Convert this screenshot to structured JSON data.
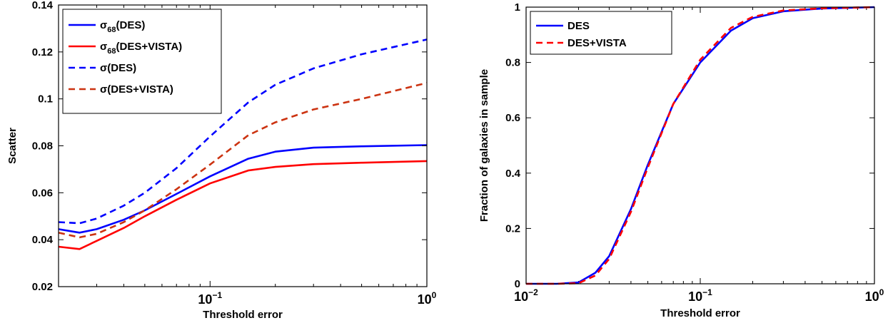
{
  "chart_data": [
    {
      "type": "line",
      "xscale": "log",
      "xlim": [
        0.02,
        1
      ],
      "ylim": [
        0.02,
        0.14
      ],
      "xlabel": "Threshold error",
      "ylabel": "Scatter",
      "xticks": [
        {
          "value": 0.1,
          "base": "10",
          "exp": "−1"
        },
        {
          "value": 1,
          "base": "10",
          "exp": "0"
        }
      ],
      "yticks": [
        {
          "value": 0.02,
          "label": "0.02"
        },
        {
          "value": 0.04,
          "label": "0.04"
        },
        {
          "value": 0.06,
          "label": "0.06"
        },
        {
          "value": 0.08,
          "label": "0.08"
        },
        {
          "value": 0.1,
          "label": "0.1"
        },
        {
          "value": 0.12,
          "label": "0.12"
        },
        {
          "value": 0.14,
          "label": "0.14"
        }
      ],
      "legend_position": "top-left",
      "series": [
        {
          "legend_main": "σ",
          "legend_sub": "68",
          "legend_rest": "(DES)",
          "color": "#0000ff",
          "dash": "solid",
          "x": [
            0.02,
            0.025,
            0.03,
            0.04,
            0.05,
            0.07,
            0.1,
            0.15,
            0.2,
            0.3,
            0.5,
            1.0
          ],
          "y": [
            0.0445,
            0.043,
            0.0445,
            0.0485,
            0.0525,
            0.0595,
            0.067,
            0.0745,
            0.0775,
            0.0792,
            0.0798,
            0.0803
          ]
        },
        {
          "legend_main": "σ",
          "legend_sub": "68",
          "legend_rest": "(DES+VISTA)",
          "color": "#ff0000",
          "dash": "solid",
          "x": [
            0.02,
            0.025,
            0.03,
            0.04,
            0.05,
            0.07,
            0.1,
            0.15,
            0.2,
            0.3,
            0.5,
            1.0
          ],
          "y": [
            0.037,
            0.036,
            0.0395,
            0.045,
            0.05,
            0.057,
            0.064,
            0.0695,
            0.071,
            0.0722,
            0.0728,
            0.0735
          ]
        },
        {
          "legend_main": "σ",
          "legend_sub": "",
          "legend_rest": "(DES)",
          "color": "#0000ff",
          "dash": "dashed",
          "x": [
            0.02,
            0.025,
            0.03,
            0.04,
            0.05,
            0.07,
            0.1,
            0.15,
            0.2,
            0.3,
            0.5,
            1.0
          ],
          "y": [
            0.0475,
            0.047,
            0.049,
            0.0545,
            0.06,
            0.0705,
            0.084,
            0.0985,
            0.106,
            0.113,
            0.119,
            0.1253
          ]
        },
        {
          "legend_main": "σ",
          "legend_sub": "",
          "legend_rest": "(DES+VISTA)",
          "color": "#cc3311",
          "dash": "dashed",
          "x": [
            0.02,
            0.025,
            0.03,
            0.04,
            0.05,
            0.07,
            0.1,
            0.15,
            0.2,
            0.3,
            0.5,
            1.0
          ],
          "y": [
            0.043,
            0.041,
            0.0425,
            0.0475,
            0.0525,
            0.0615,
            0.072,
            0.0845,
            0.09,
            0.0955,
            0.1,
            0.1068
          ]
        }
      ]
    },
    {
      "type": "line",
      "xscale": "log",
      "xlim": [
        0.01,
        1
      ],
      "ylim": [
        0,
        1
      ],
      "xlabel": "Threshold error",
      "ylabel": "Fraction of galaxies in sample",
      "xticks": [
        {
          "value": 0.01,
          "base": "10",
          "exp": "−2"
        },
        {
          "value": 0.1,
          "base": "10",
          "exp": "−1"
        },
        {
          "value": 1,
          "base": "10",
          "exp": "0"
        }
      ],
      "yticks": [
        {
          "value": 0,
          "label": "0"
        },
        {
          "value": 0.2,
          "label": "0.2"
        },
        {
          "value": 0.4,
          "label": "0.4"
        },
        {
          "value": 0.6,
          "label": "0.6"
        },
        {
          "value": 0.8,
          "label": "0.8"
        },
        {
          "value": 1,
          "label": "1"
        }
      ],
      "legend_position": "top-left",
      "series": [
        {
          "legend_main": "DES",
          "legend_sub": "",
          "legend_rest": "",
          "color": "#0000ff",
          "dash": "solid",
          "x": [
            0.01,
            0.015,
            0.02,
            0.025,
            0.03,
            0.04,
            0.05,
            0.07,
            0.1,
            0.15,
            0.2,
            0.3,
            0.5,
            1.0
          ],
          "y": [
            0,
            0,
            0.005,
            0.04,
            0.1,
            0.27,
            0.43,
            0.65,
            0.8,
            0.915,
            0.96,
            0.985,
            0.995,
            1.0
          ]
        },
        {
          "legend_main": "DES+VISTA",
          "legend_sub": "",
          "legend_rest": "",
          "color": "#ff0000",
          "dash": "dashed",
          "x": [
            0.01,
            0.015,
            0.02,
            0.025,
            0.03,
            0.04,
            0.05,
            0.07,
            0.1,
            0.15,
            0.2,
            0.3,
            0.5,
            1.0
          ],
          "y": [
            0,
            0,
            0.002,
            0.03,
            0.09,
            0.26,
            0.42,
            0.65,
            0.81,
            0.925,
            0.965,
            0.988,
            0.996,
            1.0
          ]
        }
      ]
    }
  ]
}
